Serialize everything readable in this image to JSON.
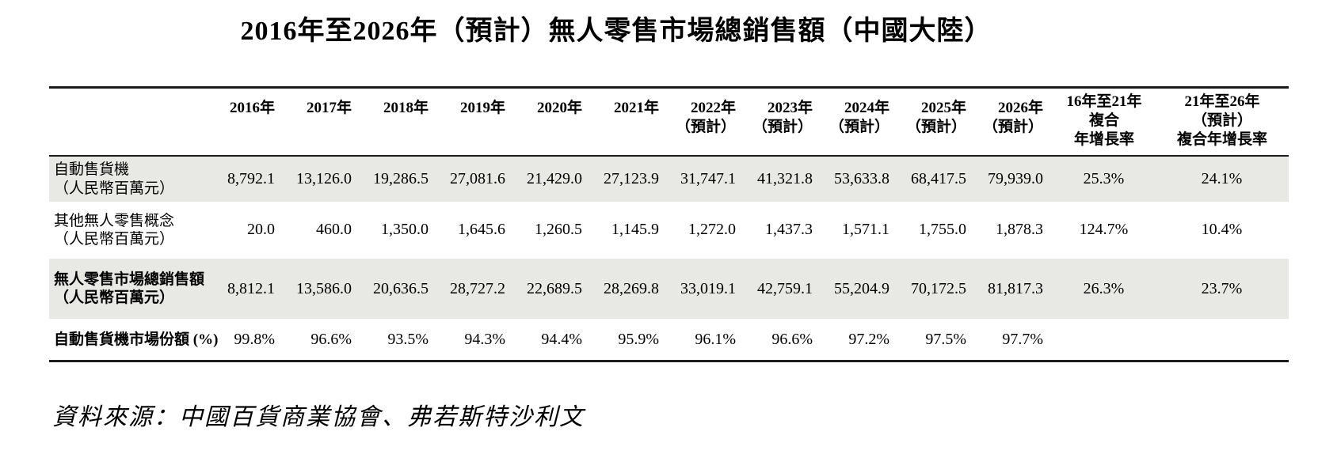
{
  "page": {
    "title": "2016年至2026年（預計）無人零售市場總銷售額（中國大陸）",
    "source_note": "資料來源：中國百貨商業協會、弗若斯特沙利文"
  },
  "colors": {
    "shaded_row": "#e8e8e5",
    "rule": "#1c1c1c",
    "text": "#000000",
    "background": "#ffffff"
  },
  "table": {
    "label_column_header": "",
    "column_headers": [
      [
        "2016年"
      ],
      [
        "2017年"
      ],
      [
        "2018年"
      ],
      [
        "2019年"
      ],
      [
        "2020年"
      ],
      [
        "2021年"
      ],
      [
        "2022年",
        "（預計）"
      ],
      [
        "2023年",
        "（預計）"
      ],
      [
        "2024年",
        "（預計）"
      ],
      [
        "2025年",
        "（預計）"
      ],
      [
        "2026年",
        "（預計）"
      ],
      [
        "16年至21年",
        "複合",
        "年增長率"
      ],
      [
        "21年至26年",
        "（預計）",
        "複合年增長率"
      ]
    ],
    "rows": [
      {
        "label": [
          "自動售貨機",
          "（人民幣百萬元）"
        ],
        "bold": false,
        "shaded": true,
        "values": [
          "8,792.1",
          "13,126.0",
          "19,286.5",
          "27,081.6",
          "21,429.0",
          "27,123.9",
          "31,747.1",
          "41,321.8",
          "53,633.8",
          "68,417.5",
          "79,939.0",
          "25.3%",
          "24.1%"
        ]
      },
      {
        "label": [
          "其他無人零售概念",
          "（人民幣百萬元）"
        ],
        "bold": false,
        "shaded": false,
        "values": [
          "20.0",
          "460.0",
          "1,350.0",
          "1,645.6",
          "1,260.5",
          "1,145.9",
          "1,272.0",
          "1,437.3",
          "1,571.1",
          "1,755.0",
          "1,878.3",
          "124.7%",
          "10.4%"
        ]
      },
      {
        "label": [
          "無人零售市場總銷售額",
          "（人民幣百萬元）"
        ],
        "bold": true,
        "shaded": true,
        "values": [
          "8,812.1",
          "13,586.0",
          "20,636.5",
          "28,727.2",
          "22,689.5",
          "28,269.8",
          "33,019.1",
          "42,759.1",
          "55,204.9",
          "70,172.5",
          "81,817.3",
          "26.3%",
          "23.7%"
        ]
      },
      {
        "label": [
          "自動售貨機市場份額 (%)"
        ],
        "bold": true,
        "shaded": false,
        "values": [
          "99.8%",
          "96.6%",
          "93.5%",
          "94.3%",
          "94.4%",
          "95.9%",
          "96.1%",
          "96.6%",
          "97.2%",
          "97.5%",
          "97.7%",
          "",
          ""
        ]
      }
    ]
  },
  "chart_data": {
    "type": "table",
    "title": "2016年至2026年（預計）無人零售市場總銷售額（中國大陸）",
    "categories": [
      "2016",
      "2017",
      "2018",
      "2019",
      "2020",
      "2021",
      "2022E",
      "2023E",
      "2024E",
      "2025E",
      "2026E"
    ],
    "series": [
      {
        "name": "自動售貨機（人民幣百萬元）",
        "values": [
          8792.1,
          13126.0,
          19286.5,
          27081.6,
          21429.0,
          27123.9,
          31747.1,
          41321.8,
          53633.8,
          68417.5,
          79939.0
        ],
        "cagr_16_21": "25.3%",
        "cagr_21_26": "24.1%"
      },
      {
        "name": "其他無人零售概念（人民幣百萬元）",
        "values": [
          20.0,
          460.0,
          1350.0,
          1645.6,
          1260.5,
          1145.9,
          1272.0,
          1437.3,
          1571.1,
          1755.0,
          1878.3
        ],
        "cagr_16_21": "124.7%",
        "cagr_21_26": "10.4%"
      },
      {
        "name": "無人零售市場總銷售額（人民幣百萬元）",
        "values": [
          8812.1,
          13586.0,
          20636.5,
          28727.2,
          22689.5,
          28269.8,
          33019.1,
          42759.1,
          55204.9,
          70172.5,
          81817.3
        ],
        "cagr_16_21": "26.3%",
        "cagr_21_26": "23.7%"
      },
      {
        "name": "自動售貨機市場份額 (%)",
        "values": [
          99.8,
          96.6,
          93.5,
          94.3,
          94.4,
          95.9,
          96.1,
          96.6,
          97.2,
          97.5,
          97.7
        ],
        "cagr_16_21": "",
        "cagr_21_26": ""
      }
    ]
  }
}
